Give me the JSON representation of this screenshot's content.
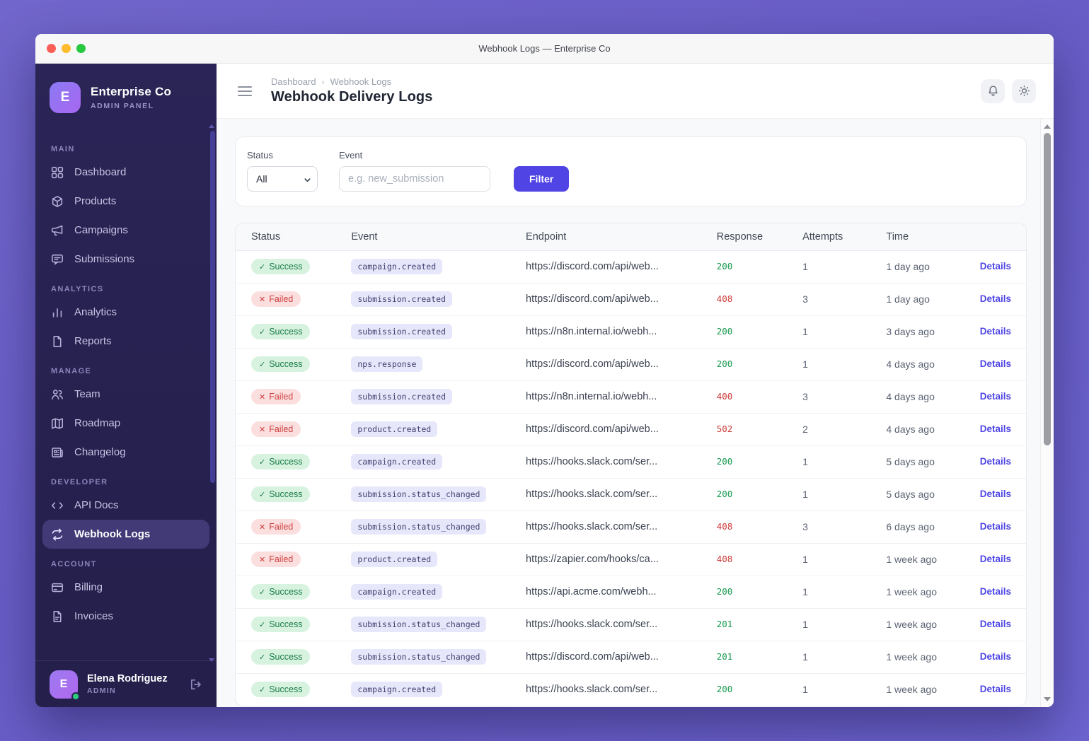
{
  "window": {
    "title": "Webhook Logs — Enterprise Co",
    "traffic_lights": [
      "#fb5f57",
      "#febc2e",
      "#28c840"
    ]
  },
  "sidebar": {
    "brand": {
      "initial": "E",
      "name": "Enterprise Co",
      "subtitle": "ADMIN PANEL"
    },
    "sections": [
      {
        "label": "MAIN",
        "items": [
          {
            "icon": "grid",
            "label": "Dashboard"
          },
          {
            "icon": "box",
            "label": "Products"
          },
          {
            "icon": "megaphone",
            "label": "Campaigns"
          },
          {
            "icon": "chat",
            "label": "Submissions"
          }
        ]
      },
      {
        "label": "ANALYTICS",
        "items": [
          {
            "icon": "bar-chart",
            "label": "Analytics"
          },
          {
            "icon": "document",
            "label": "Reports"
          }
        ]
      },
      {
        "label": "MANAGE",
        "items": [
          {
            "icon": "users",
            "label": "Team"
          },
          {
            "icon": "map",
            "label": "Roadmap"
          },
          {
            "icon": "newspaper",
            "label": "Changelog"
          }
        ]
      },
      {
        "label": "DEVELOPER",
        "items": [
          {
            "icon": "code",
            "label": "API Docs"
          },
          {
            "icon": "webhook",
            "label": "Webhook Logs",
            "active": true
          }
        ]
      },
      {
        "label": "ACCOUNT",
        "items": [
          {
            "icon": "credit-card",
            "label": "Billing"
          },
          {
            "icon": "invoice",
            "label": "Invoices"
          }
        ]
      }
    ],
    "user": {
      "initial": "E",
      "name": "Elena Rodriguez",
      "role": "ADMIN"
    }
  },
  "header": {
    "breadcrumb": [
      "Dashboard",
      "Webhook Logs"
    ],
    "separator": "›",
    "title": "Webhook Delivery Logs"
  },
  "filters": {
    "status_label": "Status",
    "status_value": "All",
    "event_label": "Event",
    "event_placeholder": "e.g. new_submission",
    "button_label": "Filter"
  },
  "table": {
    "columns": [
      "Status",
      "Event",
      "Endpoint",
      "Response",
      "Attempts",
      "Time",
      ""
    ],
    "details_label": "Details",
    "status_labels": {
      "success": "Success",
      "failed": "Failed"
    },
    "status_marks": {
      "success": "✓",
      "failed": "✕"
    },
    "rows": [
      {
        "status": "success",
        "event": "campaign.created",
        "endpoint": "https://discord.com/api/web...",
        "response": "200",
        "attempts": "1",
        "time": "1 day ago"
      },
      {
        "status": "failed",
        "event": "submission.created",
        "endpoint": "https://discord.com/api/web...",
        "response": "408",
        "attempts": "3",
        "time": "1 day ago"
      },
      {
        "status": "success",
        "event": "submission.created",
        "endpoint": "https://n8n.internal.io/webh...",
        "response": "200",
        "attempts": "1",
        "time": "3 days ago"
      },
      {
        "status": "success",
        "event": "nps.response",
        "endpoint": "https://discord.com/api/web...",
        "response": "200",
        "attempts": "1",
        "time": "4 days ago"
      },
      {
        "status": "failed",
        "event": "submission.created",
        "endpoint": "https://n8n.internal.io/webh...",
        "response": "400",
        "attempts": "3",
        "time": "4 days ago"
      },
      {
        "status": "failed",
        "event": "product.created",
        "endpoint": "https://discord.com/api/web...",
        "response": "502",
        "attempts": "2",
        "time": "4 days ago"
      },
      {
        "status": "success",
        "event": "campaign.created",
        "endpoint": "https://hooks.slack.com/ser...",
        "response": "200",
        "attempts": "1",
        "time": "5 days ago"
      },
      {
        "status": "success",
        "event": "submission.status_changed",
        "endpoint": "https://hooks.slack.com/ser...",
        "response": "200",
        "attempts": "1",
        "time": "5 days ago"
      },
      {
        "status": "failed",
        "event": "submission.status_changed",
        "endpoint": "https://hooks.slack.com/ser...",
        "response": "408",
        "attempts": "3",
        "time": "6 days ago"
      },
      {
        "status": "failed",
        "event": "product.created",
        "endpoint": "https://zapier.com/hooks/ca...",
        "response": "408",
        "attempts": "1",
        "time": "1 week ago"
      },
      {
        "status": "success",
        "event": "campaign.created",
        "endpoint": "https://api.acme.com/webh...",
        "response": "200",
        "attempts": "1",
        "time": "1 week ago"
      },
      {
        "status": "success",
        "event": "submission.status_changed",
        "endpoint": "https://hooks.slack.com/ser...",
        "response": "201",
        "attempts": "1",
        "time": "1 week ago"
      },
      {
        "status": "success",
        "event": "submission.status_changed",
        "endpoint": "https://discord.com/api/web...",
        "response": "201",
        "attempts": "1",
        "time": "1 week ago"
      },
      {
        "status": "success",
        "event": "campaign.created",
        "endpoint": "https://hooks.slack.com/ser...",
        "response": "200",
        "attempts": "1",
        "time": "1 week ago"
      }
    ]
  },
  "colors": {
    "accent": "#5144e4",
    "success_bg": "#d7f3e0",
    "success_text": "#187a45",
    "failed_bg": "#fbdfdf",
    "failed_text": "#cf3e3e",
    "event_bg": "#e7e7fb",
    "event_text": "#41406f",
    "response_ok": "#189a50",
    "response_error": "#d23b3b",
    "link": "#4f46e5",
    "online": "#2ecc80"
  }
}
